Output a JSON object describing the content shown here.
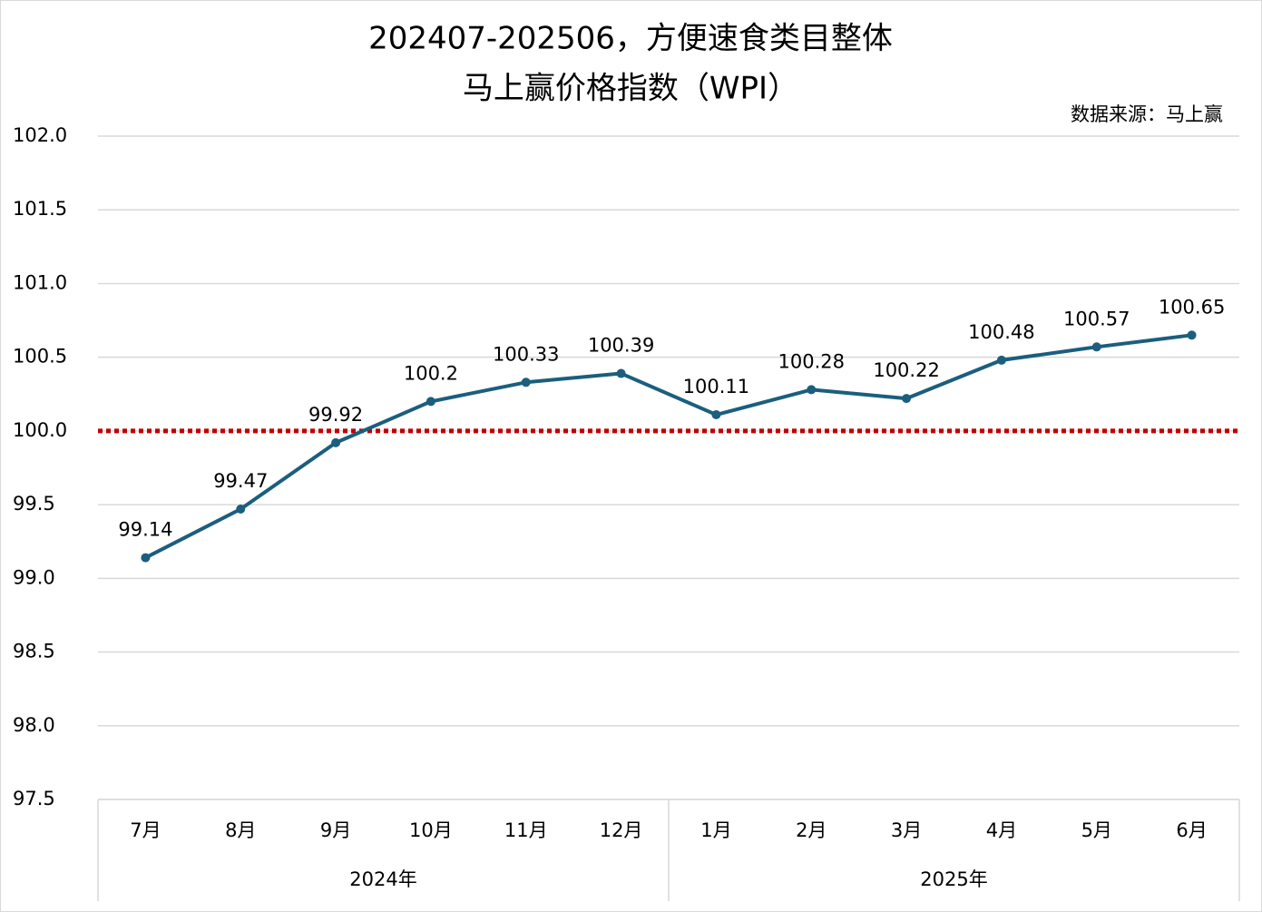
{
  "chart_data": {
    "type": "line",
    "title": [
      "202407-202506，方便速食类目整体",
      "马上赢价格指数（WPI）"
    ],
    "source": "数据来源：马上赢",
    "category_groups": [
      {
        "name": "2024年",
        "categories": [
          "7月",
          "8月",
          "9月",
          "10月",
          "11月",
          "12月"
        ]
      },
      {
        "name": "2025年",
        "categories": [
          "1月",
          "2月",
          "3月",
          "4月",
          "5月",
          "6月"
        ]
      }
    ],
    "series": [
      {
        "color": "#1b5e7e",
        "values": [
          99.14,
          99.47,
          99.92,
          100.2,
          100.33,
          100.39,
          100.11,
          100.28,
          100.22,
          100.48,
          100.57,
          100.65
        ]
      }
    ],
    "reference_line": {
      "value": 100,
      "color": "#c00000",
      "style": "dotted"
    },
    "ylim": [
      97.5,
      102
    ],
    "yticks": [
      97.5,
      {
        "value": 98,
        "label": "98.0"
      },
      98.5,
      {
        "value": 99,
        "label": "99.0"
      },
      99.5,
      {
        "value": 100,
        "label": "100.0"
      },
      100.5,
      {
        "value": 101,
        "label": "101.0"
      },
      101.5,
      {
        "value": 102,
        "label": "102.0"
      }
    ],
    "grid": true
  }
}
